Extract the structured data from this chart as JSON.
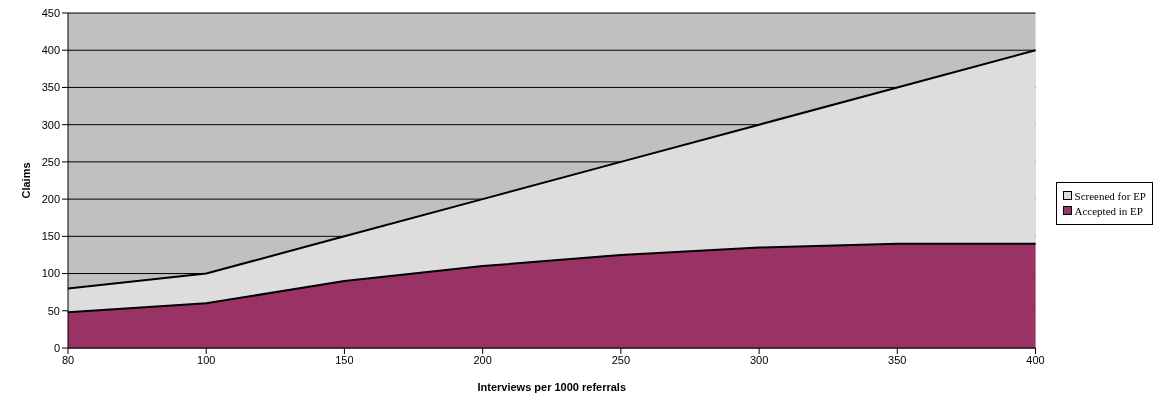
{
  "chart_data": {
    "type": "area",
    "xlabel": "Interviews per 1000 referrals",
    "ylabel": "Claims",
    "categories": [
      "80",
      "100",
      "150",
      "200",
      "250",
      "300",
      "350",
      "400"
    ],
    "series": [
      {
        "name": "Screened for EP",
        "color": "#dddddd",
        "values": [
          80,
          100,
          150,
          200,
          250,
          300,
          350,
          400
        ]
      },
      {
        "name": "Accepted in EP",
        "color": "#993366",
        "values": [
          48,
          60,
          90,
          110,
          125,
          135,
          140,
          140
        ]
      }
    ],
    "ylim": [
      0,
      450
    ],
    "yticks": [
      0,
      50,
      100,
      150,
      200,
      250,
      300,
      350,
      400,
      450
    ],
    "grid": "y",
    "legend": "right"
  }
}
